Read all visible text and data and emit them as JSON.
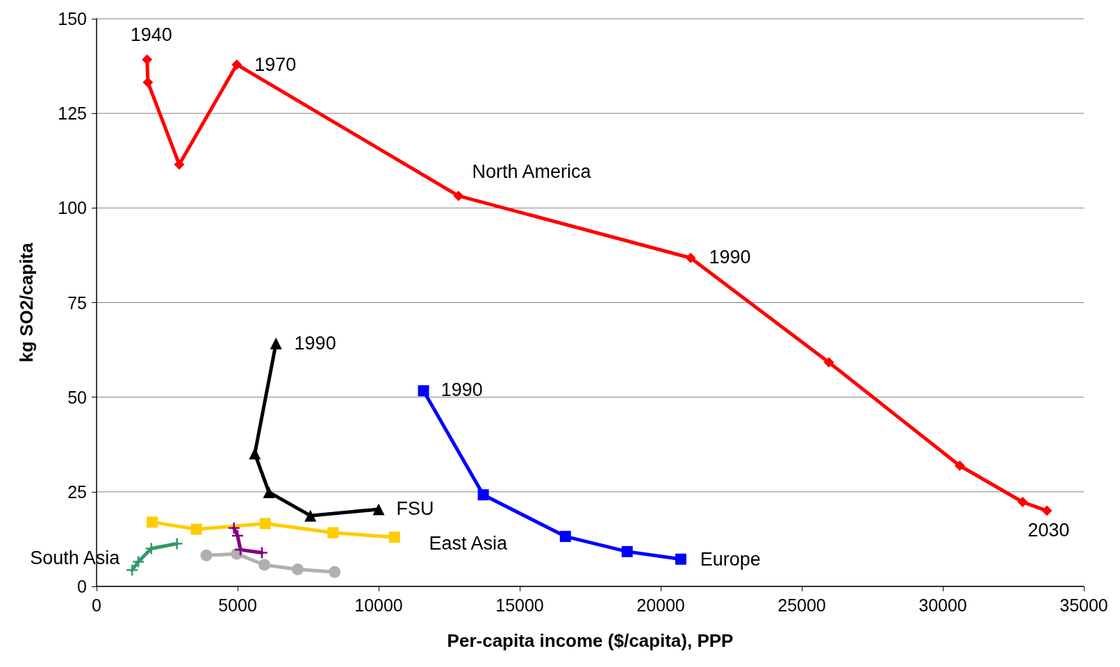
{
  "chart_data": {
    "type": "line",
    "xlabel": "Per-capita income ($/capita), PPP",
    "ylabel": "kg SO2/capita",
    "xlim": [
      0,
      35000
    ],
    "xticks": [
      0,
      5000,
      10000,
      15000,
      20000,
      25000,
      30000,
      35000
    ],
    "ylim": [
      0,
      150
    ],
    "yticks": [
      0,
      25,
      50,
      75,
      100,
      125,
      150
    ],
    "grid": "y",
    "series": [
      {
        "color": "#ff0000",
        "marker": "diamond",
        "x": [
          1790,
          1820,
          2930,
          4970,
          12830,
          21060,
          25960,
          30600,
          32830,
          33690
        ],
        "values": [
          139.2,
          133.2,
          111.5,
          137.9,
          103.2,
          86.8,
          59.2,
          31.9,
          22.3,
          20.0
        ]
      },
      {
        "color": "#000000",
        "marker": "triangle",
        "x": [
          6360,
          5610,
          6110,
          7580,
          10000
        ],
        "values": [
          64.2,
          35.1,
          24.9,
          18.7,
          20.4
        ]
      },
      {
        "color": "#0000ff",
        "marker": "square",
        "x": [
          11590,
          13710,
          16620,
          18810,
          20710
        ],
        "values": [
          51.7,
          24.2,
          13.2,
          9.2,
          7.2
        ]
      },
      {
        "color": "#ffcc00",
        "marker": "square",
        "x": [
          1970,
          3540,
          5980,
          8380,
          10560
        ],
        "values": [
          17.0,
          15.1,
          16.6,
          14.2,
          13.0
        ]
      },
      {
        "color": "#339966",
        "marker": "cross",
        "x": [
          1260,
          1480,
          1940,
          2850
        ],
        "values": [
          4.3,
          6.5,
          10.0,
          11.3
        ]
      },
      {
        "color": "#b0b0b0",
        "marker": "circle",
        "x": [
          3890,
          4970,
          5950,
          7130,
          8440
        ],
        "values": [
          8.2,
          8.6,
          5.7,
          4.5,
          3.8
        ]
      },
      {
        "color": "#800080",
        "marker": "cross",
        "x": [
          4870,
          5000,
          5100,
          5860
        ],
        "values": [
          15.4,
          13.4,
          9.7,
          8.9
        ]
      }
    ],
    "annotations": [
      "1940",
      "1970",
      "North America",
      "1990",
      "2030",
      "1990",
      "FSU",
      "1990",
      "Europe",
      "East Asia",
      "South Asia"
    ]
  }
}
